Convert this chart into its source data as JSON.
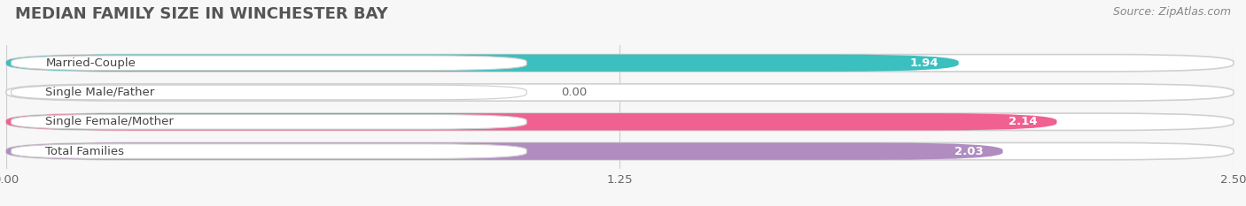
{
  "title": "MEDIAN FAMILY SIZE IN WINCHESTER BAY",
  "source": "Source: ZipAtlas.com",
  "categories": [
    "Married-Couple",
    "Single Male/Father",
    "Single Female/Mother",
    "Total Families"
  ],
  "values": [
    1.94,
    0.0,
    2.14,
    2.03
  ],
  "bar_colors": [
    "#3bbfbf",
    "#aab4e8",
    "#f06090",
    "#b08cc0"
  ],
  "xlim": [
    0,
    2.5
  ],
  "xticks": [
    0.0,
    1.25,
    2.5
  ],
  "xtick_labels": [
    "0.00",
    "1.25",
    "2.50"
  ],
  "bar_height": 0.58,
  "background_color": "#f7f7f7",
  "bar_bg_color": "#e8e8e8",
  "label_fontsize": 9.5,
  "value_fontsize": 9.5,
  "title_fontsize": 13,
  "source_fontsize": 9,
  "label_text_color": "#444444",
  "value_text_color_inside": "#ffffff",
  "value_text_color_outside": "#666666"
}
